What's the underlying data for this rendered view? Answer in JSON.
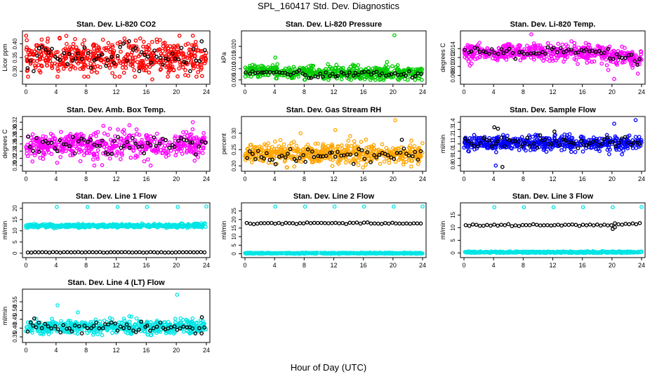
{
  "title": "SPL_160417  Std. Dev. Diagnostics",
  "xlabel": "Hour of Day (UTC)",
  "chart_data": [
    {
      "id": "co2",
      "type": "scatter",
      "title": "Stan. Dev. Li-820 CO2",
      "ylabel": "Licor ppm",
      "xlim": [
        0,
        24
      ],
      "ylim": [
        0.26,
        0.44
      ],
      "xticks": [
        0,
        4,
        8,
        12,
        16,
        20,
        24
      ],
      "yticks": [
        "0.30",
        "0.35",
        "0.40"
      ],
      "ytick_values": [
        0.3,
        0.35,
        0.4
      ],
      "series": [
        {
          "color": "#ff0000",
          "center": 0.35,
          "spread": 0.03,
          "min": 0.28,
          "max": 0.43,
          "outliers": [
            [
              4.2,
              0.28
            ],
            [
              16.8,
              0.27
            ],
            [
              15.2,
              0.42
            ],
            [
              13.1,
              0.42
            ]
          ]
        },
        {
          "color": "#000000",
          "center": 0.35,
          "spread": 0.025,
          "min": 0.3,
          "max": 0.41,
          "outliers": []
        }
      ]
    },
    {
      "id": "pressure",
      "type": "scatter",
      "title": "Stan. Dev. Li-820 Pressure",
      "ylabel": "kPa",
      "xlim": [
        0,
        24
      ],
      "ylim": [
        0.004,
        0.026
      ],
      "xticks": [
        0,
        4,
        8,
        12,
        16,
        20,
        24
      ],
      "yticks": [
        "0.005",
        "0.010",
        "0.015",
        "0.020"
      ],
      "ytick_values": [
        0.005,
        0.01,
        0.015,
        0.02
      ],
      "series": [
        {
          "color": "#00cc00",
          "center": 0.008,
          "spread": 0.0015,
          "min": 0.005,
          "max": 0.012,
          "outliers": [
            [
              20.2,
              0.025
            ],
            [
              4.1,
              0.015
            ],
            [
              19.2,
              0.013
            ],
            [
              11.2,
              0.012
            ],
            [
              23.8,
              0.01
            ]
          ]
        },
        {
          "color": "#000000",
          "center": 0.0075,
          "spread": 0.0008,
          "min": 0.005,
          "max": 0.01,
          "outliers": []
        }
      ]
    },
    {
      "id": "temp",
      "type": "scatter",
      "title": "Stan. Dev. Li-820 Temp.",
      "ylabel": "degrees C",
      "xlim": [
        0,
        24
      ],
      "ylim": [
        0.0065,
        0.0175
      ],
      "xticks": [
        0,
        4,
        8,
        12,
        16,
        20,
        24
      ],
      "yticks": [
        "0.008",
        "0.010",
        "0.012",
        "0.014"
      ],
      "ytick_values": [
        0.008,
        0.01,
        0.012,
        0.014
      ],
      "series": [
        {
          "color": "#ff00ff",
          "center": 0.0132,
          "spread": 0.0009,
          "min": 0.008,
          "max": 0.017,
          "outliers": [
            [
              9.1,
              0.0172
            ],
            [
              20.3,
              0.0072
            ],
            [
              23.5,
              0.0084
            ],
            [
              19.5,
              0.0092
            ]
          ]
        },
        {
          "color": "#000000",
          "center": 0.0132,
          "spread": 0.0006,
          "min": 0.01,
          "max": 0.016,
          "outliers": []
        }
      ]
    },
    {
      "id": "boxtemp",
      "type": "scatter",
      "title": "Stan. Dev. Amb. Box Temp.",
      "ylabel": "degrees C",
      "xlim": [
        0,
        24
      ],
      "ylim": [
        0.19,
        0.33
      ],
      "xticks": [
        0,
        4,
        8,
        12,
        16,
        20,
        24
      ],
      "yticks": [
        "0.20",
        "0.22",
        "0.24",
        "0.26",
        "0.28",
        "0.30",
        "0.32"
      ],
      "ytick_values": [
        0.2,
        0.22,
        0.24,
        0.26,
        0.28,
        0.3,
        0.32
      ],
      "series": [
        {
          "color": "#ff00ff",
          "center": 0.255,
          "spread": 0.018,
          "min": 0.2,
          "max": 0.32,
          "outliers": [
            [
              22.2,
              0.32
            ],
            [
              10.3,
              0.31
            ],
            [
              9.1,
              0.2
            ]
          ]
        },
        {
          "color": "#000000",
          "center": 0.26,
          "spread": 0.015,
          "min": 0.22,
          "max": 0.31,
          "outliers": []
        }
      ]
    },
    {
      "id": "rh",
      "type": "scatter",
      "title": "Stan. Dev. Gas Stream RH",
      "ylabel": "percent",
      "xlim": [
        0,
        24
      ],
      "ylim": [
        0.19,
        0.345
      ],
      "xticks": [
        0,
        4,
        8,
        12,
        16,
        20,
        24
      ],
      "yticks": [
        "0.20",
        "0.25",
        "0.30"
      ],
      "ytick_values": [
        0.2,
        0.25,
        0.3
      ],
      "series": [
        {
          "color": "#ffa500",
          "center": 0.238,
          "spread": 0.015,
          "min": 0.195,
          "max": 0.335,
          "outliers": [
            [
              20.3,
              0.34
            ],
            [
              12.2,
              0.31
            ],
            [
              7.5,
              0.3
            ]
          ]
        },
        {
          "color": "#000000",
          "center": 0.232,
          "spread": 0.012,
          "min": 0.205,
          "max": 0.29,
          "outliers": [
            [
              21.2,
              0.28
            ]
          ]
        }
      ]
    },
    {
      "id": "sampleflow",
      "type": "scatter",
      "title": "Stan. Dev. Sample Flow",
      "ylabel": "ml/min",
      "xlim": [
        0,
        24
      ],
      "ylim": [
        0.75,
        1.45
      ],
      "xticks": [
        0,
        4,
        8,
        12,
        16,
        20,
        24
      ],
      "yticks": [
        "0.8",
        "0.9",
        "1.0",
        "1.1",
        "1.2",
        "1.3",
        "1.4"
      ],
      "ytick_values": [
        0.8,
        0.9,
        1.0,
        1.1,
        1.2,
        1.3,
        1.4
      ],
      "series": [
        {
          "color": "#0000ff",
          "center": 1.11,
          "spread": 0.05,
          "min": 0.8,
          "max": 1.43,
          "outliers": [
            [
              23.2,
              1.43
            ],
            [
              4.3,
              0.8
            ],
            [
              20.3,
              1.38
            ]
          ]
        },
        {
          "color": "#000000",
          "center": 1.12,
          "spread": 0.04,
          "min": 0.95,
          "max": 1.35,
          "outliers": [
            [
              4.1,
              1.33
            ],
            [
              4.6,
              1.31
            ],
            [
              5.2,
              0.78
            ]
          ]
        }
      ]
    },
    {
      "id": "line1",
      "type": "scatter",
      "title": "Stan. Dev. Line 1 Flow",
      "ylabel": "ml/min",
      "xlim": [
        0,
        24
      ],
      "ylim": [
        -1,
        21.5
      ],
      "xticks": [
        0,
        4,
        8,
        12,
        16,
        20,
        24
      ],
      "yticks": [
        "0",
        "5",
        "10",
        "15",
        "20"
      ],
      "ytick_values": [
        0,
        5,
        10,
        15,
        20
      ],
      "series": [
        {
          "color": "#00e5e5",
          "center": 12.2,
          "spread": 0.35,
          "min": 10.5,
          "max": 13.5,
          "outliers": [
            [
              4.1,
              20.6
            ],
            [
              8.2,
              20.6
            ],
            [
              12.2,
              20.6
            ],
            [
              16.1,
              20.6
            ],
            [
              20.2,
              20.6
            ],
            [
              24,
              20.8
            ]
          ]
        },
        {
          "color": "#000000",
          "center": 0.4,
          "spread": 0.05,
          "min": 0.2,
          "max": 0.6,
          "outliers": [],
          "sparse": true
        }
      ]
    },
    {
      "id": "line2",
      "type": "scatter",
      "title": "Stan. Dev. Line 2 Flow",
      "ylabel": "ml/min",
      "xlim": [
        0,
        24
      ],
      "ylim": [
        -1,
        28.5
      ],
      "xticks": [
        0,
        4,
        8,
        12,
        16,
        20,
        24
      ],
      "yticks": [
        "0",
        "5",
        "10",
        "15",
        "20",
        "25"
      ],
      "ytick_values": [
        0,
        5,
        10,
        15,
        20,
        25
      ],
      "series": [
        {
          "color": "#00e5e5",
          "center": 0.3,
          "spread": 0.15,
          "min": 0,
          "max": 1,
          "outliers": [
            [
              4.1,
              27.5
            ],
            [
              8.1,
              27.5
            ],
            [
              12.1,
              27.5
            ],
            [
              16.1,
              27.5
            ],
            [
              20.1,
              27.5
            ],
            [
              24,
              27.6
            ]
          ]
        },
        {
          "color": "#000000",
          "center": 17.8,
          "spread": 0.2,
          "min": 17,
          "max": 18.5,
          "outliers": [],
          "sparse": true
        }
      ]
    },
    {
      "id": "line3",
      "type": "scatter",
      "title": "Stan. Dev. Line 3 Flow",
      "ylabel": "ml/min",
      "xlim": [
        0,
        24
      ],
      "ylim": [
        -1,
        19
      ],
      "xticks": [
        0,
        4,
        8,
        12,
        16,
        20,
        24
      ],
      "yticks": [
        "0",
        "5",
        "10",
        "15"
      ],
      "ytick_values": [
        0,
        5,
        10,
        15
      ],
      "series": [
        {
          "color": "#00e5e5",
          "center": 0.3,
          "spread": 0.15,
          "min": 0,
          "max": 1,
          "outliers": [
            [
              4.1,
              18.1
            ],
            [
              8.1,
              18.1
            ],
            [
              12.1,
              18.1
            ],
            [
              16.1,
              18.1
            ],
            [
              20.1,
              18.1
            ],
            [
              24,
              18.2
            ]
          ]
        },
        {
          "color": "#000000",
          "center": 11.0,
          "spread": 0.2,
          "min": 10,
          "max": 12,
          "outliers": [
            [
              20.1,
              9.5
            ],
            [
              20.4,
              10.2
            ]
          ],
          "sparse": true
        }
      ]
    },
    {
      "id": "line4",
      "type": "scatter",
      "title": "Stan. Dev. Line 4 (LT) Flow",
      "ylabel": "ml/min",
      "xlim": [
        0,
        24
      ],
      "ylim": [
        0.33,
        0.61
      ],
      "xticks": [
        0,
        4,
        8,
        12,
        16,
        20,
        24
      ],
      "yticks": [
        "0.35",
        "0.40",
        "0.45",
        "0.50",
        "0.55"
      ],
      "ytick_values": [
        0.35,
        0.4,
        0.45,
        0.5,
        0.55
      ],
      "series": [
        {
          "color": "#00e5e5",
          "center": 0.405,
          "spread": 0.02,
          "min": 0.36,
          "max": 0.48,
          "outliers": [
            [
              20.1,
              0.59
            ],
            [
              4.2,
              0.53
            ],
            [
              6.9,
              0.49
            ]
          ]
        },
        {
          "color": "#000000",
          "center": 0.405,
          "spread": 0.015,
          "min": 0.37,
          "max": 0.47,
          "outliers": [
            [
              1.1,
              0.455
            ],
            [
              23.4,
              0.462
            ]
          ]
        }
      ]
    }
  ]
}
